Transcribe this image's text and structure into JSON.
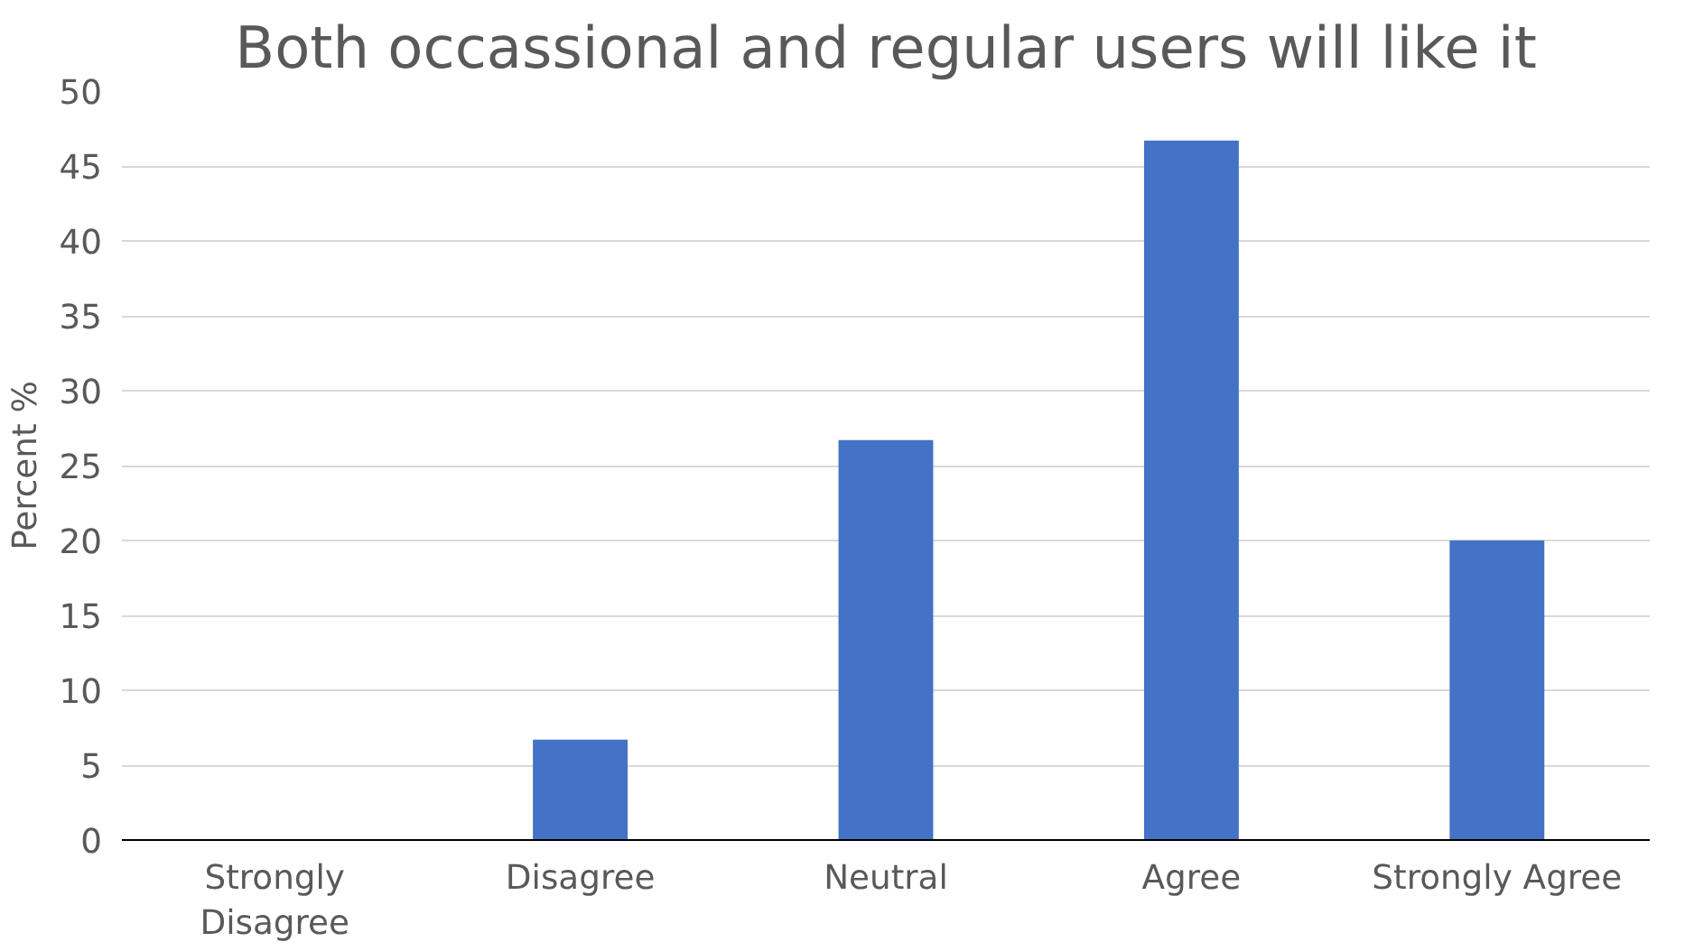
{
  "chart_data": {
    "type": "bar",
    "title": "Both occassional and regular users will like it",
    "ylabel": "Percent %",
    "categories": [
      "Strongly Disagree",
      "Disagree",
      "Neutral",
      "Agree",
      "Strongly Agree"
    ],
    "values": [
      0,
      6.7,
      26.7,
      46.7,
      20
    ],
    "color": "#4472c4",
    "ylim": [
      0,
      50
    ],
    "yticks": [
      0,
      5,
      10,
      15,
      20,
      25,
      30,
      35,
      40,
      45,
      50
    ],
    "grid": "y"
  }
}
